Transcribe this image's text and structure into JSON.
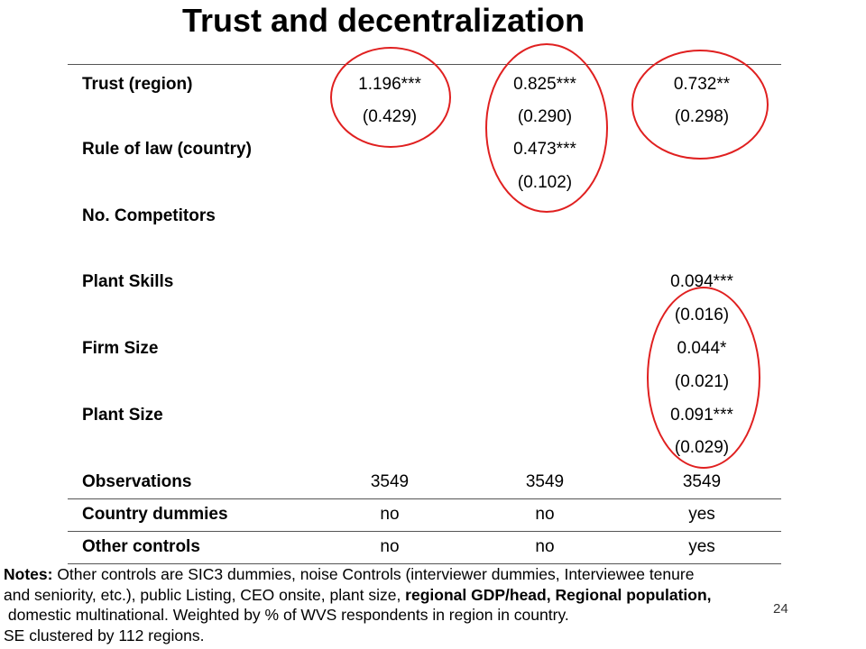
{
  "title": "Trust and decentralization",
  "rows": [
    {
      "label": "Trust (region)",
      "c1": "1.196***",
      "c2": "0.825***",
      "c3": "0.732**"
    },
    {
      "label": "",
      "c1": "(0.429)",
      "c2": "(0.290)",
      "c3": "(0.298)"
    },
    {
      "label": "Rule of law (country)",
      "c1": "",
      "c2": "0.473***",
      "c3": ""
    },
    {
      "label": "",
      "c1": "",
      "c2": "(0.102)",
      "c3": ""
    },
    {
      "label": "No. Competitors",
      "c1": "",
      "c2": "",
      "c3": ""
    },
    {
      "label": "Plant Skills",
      "c1": "",
      "c2": "",
      "c3": "0.094***"
    },
    {
      "label": "",
      "c1": "",
      "c2": "",
      "c3": "(0.016)"
    },
    {
      "label": "Firm Size",
      "c1": "",
      "c2": "",
      "c3": "0.044*"
    },
    {
      "label": "",
      "c1": "",
      "c2": "",
      "c3": "(0.021)"
    },
    {
      "label": "Plant Size",
      "c1": "",
      "c2": "",
      "c3": "0.091***"
    },
    {
      "label": "",
      "c1": "",
      "c2": "",
      "c3": "(0.029)"
    },
    {
      "label": "Observations",
      "c1": "3549",
      "c2": "3549",
      "c3": "3549"
    },
    {
      "label": "Country dummies",
      "c1": "no",
      "c2": "no",
      "c3": "yes"
    },
    {
      "label": "Other controls",
      "c1": "no",
      "c2": "no",
      "c3": "yes"
    }
  ],
  "notes": {
    "prefix": "Notes:",
    "line1": " Other controls are SIC3 dummies, noise Controls (interviewer dummies, Interviewee tenure",
    "line2_plain": "and seniority, etc.), public Listing, CEO onsite, plant size, ",
    "line2_bold": "regional GDP/head, Regional population,",
    "line3": " domestic multinational. Weighted by % of WVS respondents in region in country.",
    "line4": "SE clustered by 112 regions."
  },
  "slide_number": "24",
  "colors": {
    "annotation_circle": "#e02020",
    "rule_line": "#555555"
  }
}
